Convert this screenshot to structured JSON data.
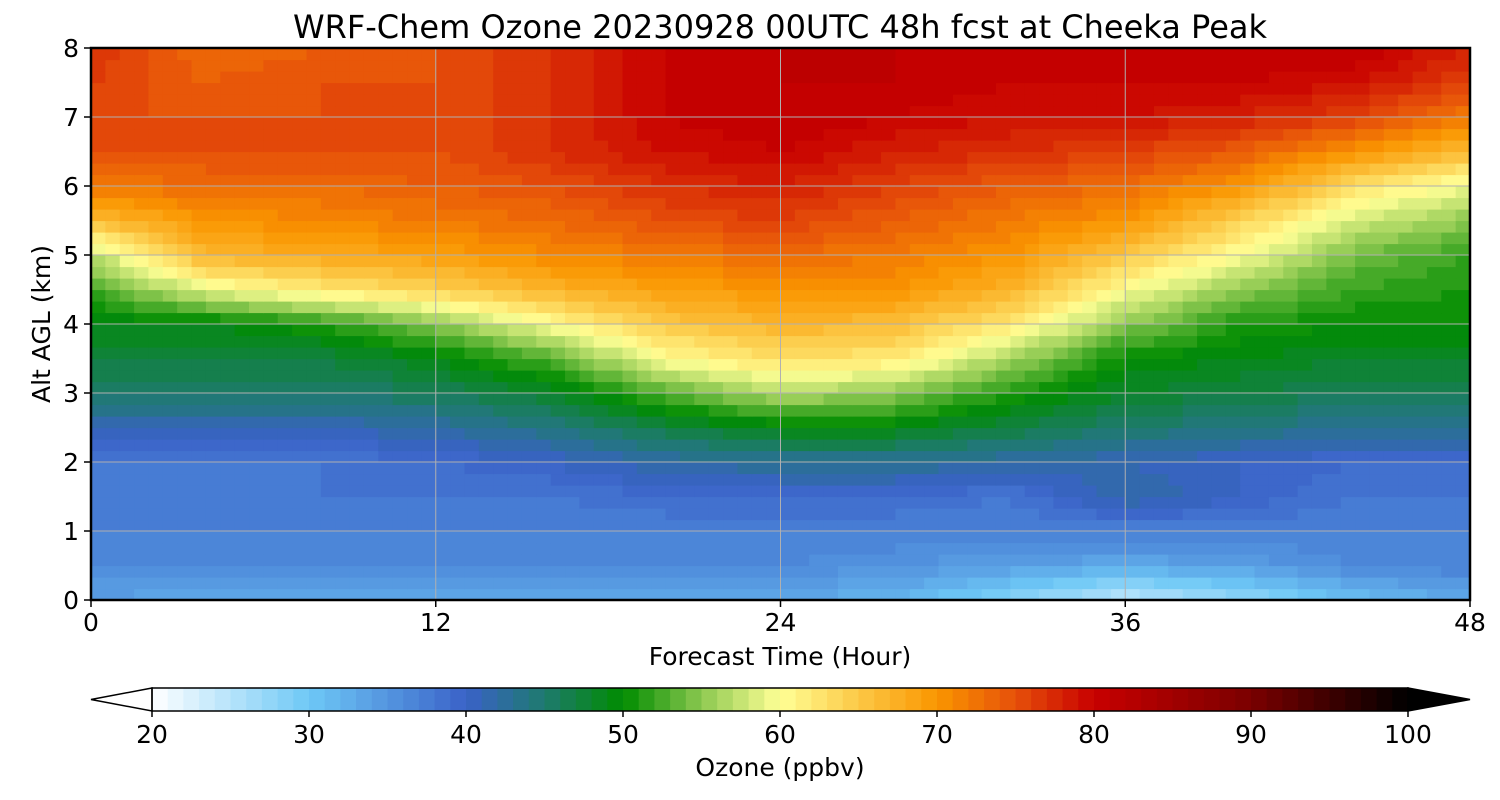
{
  "chart_data": {
    "type": "heatmap",
    "title": "WRF-Chem Ozone  20230928 00UTC 48h fcst at Cheeka Peak",
    "xlabel": "Forecast Time (Hour)",
    "ylabel": "Alt AGL (km)",
    "xlim": [
      0,
      48
    ],
    "ylim": [
      0,
      8
    ],
    "xticks": [
      "0",
      "12",
      "24",
      "36",
      "48"
    ],
    "yticks": [
      "0",
      "1",
      "2",
      "3",
      "4",
      "5",
      "6",
      "7",
      "8"
    ],
    "grid": true,
    "colorbar": {
      "label": "Ozone  (ppbv)",
      "range": [
        20,
        100
      ],
      "ticks": [
        "20",
        "30",
        "40",
        "50",
        "60",
        "70",
        "80",
        "90",
        "100"
      ],
      "extend": "both",
      "stops": [
        {
          "v": 20,
          "c": "#ffffff"
        },
        {
          "v": 30,
          "c": "#6ec8f6"
        },
        {
          "v": 40,
          "c": "#3a62c8"
        },
        {
          "v": 45,
          "c": "#1e7a6e"
        },
        {
          "v": 50,
          "c": "#008c00"
        },
        {
          "v": 55,
          "c": "#8cc850"
        },
        {
          "v": 60,
          "c": "#ffff96"
        },
        {
          "v": 65,
          "c": "#fcc846"
        },
        {
          "v": 70,
          "c": "#fa9600"
        },
        {
          "v": 75,
          "c": "#e6500a"
        },
        {
          "v": 80,
          "c": "#c80000"
        },
        {
          "v": 90,
          "c": "#7a0000"
        },
        {
          "v": 100,
          "c": "#000000"
        }
      ]
    },
    "hours": [
      0,
      4,
      8,
      12,
      16,
      20,
      24,
      28,
      32,
      36,
      40,
      44,
      48
    ],
    "altitudes_km": [
      0,
      0.5,
      1,
      1.5,
      2,
      2.5,
      3,
      3.5,
      4,
      4.5,
      5,
      5.5,
      6,
      6.5,
      7,
      7.5,
      8
    ],
    "values_ppbv": [
      [
        34,
        33,
        33,
        33,
        33,
        33,
        33,
        32,
        28,
        24,
        27,
        31,
        33
      ],
      [
        36,
        36,
        36,
        36,
        36,
        36,
        36,
        35,
        34,
        33,
        34,
        36,
        37
      ],
      [
        37,
        37,
        37,
        37,
        37,
        37,
        37,
        37,
        37,
        37,
        37,
        37,
        37
      ],
      [
        38,
        37,
        38,
        38,
        38,
        39,
        39,
        39,
        38,
        42,
        40,
        38,
        38
      ],
      [
        38,
        38,
        38,
        39,
        40,
        42,
        43,
        43,
        42,
        41,
        40,
        39,
        39
      ],
      [
        41,
        41,
        41,
        42,
        44,
        47,
        49,
        49,
        47,
        45,
        44,
        43,
        43
      ],
      [
        45,
        45,
        45,
        46,
        48,
        53,
        57,
        55,
        51,
        48,
        47,
        46,
        46
      ],
      [
        47,
        47,
        47,
        49,
        53,
        60,
        63,
        62,
        56,
        50,
        49,
        48,
        48
      ],
      [
        49,
        49,
        51,
        55,
        60,
        65,
        67,
        66,
        62,
        55,
        51,
        50,
        50
      ],
      [
        52,
        59,
        62,
        64,
        67,
        69,
        70,
        70,
        67,
        60,
        55,
        52,
        51
      ],
      [
        57,
        67,
        68,
        69,
        71,
        72,
        73,
        72,
        70,
        65,
        60,
        54,
        52
      ],
      [
        66,
        70,
        71,
        72,
        73,
        75,
        76,
        74,
        72,
        70,
        64,
        58,
        55
      ],
      [
        72,
        73,
        73,
        74,
        75,
        77,
        78,
        76,
        74,
        73,
        70,
        63,
        59
      ],
      [
        75,
        75,
        75,
        75,
        77,
        79,
        80,
        78,
        77,
        76,
        74,
        70,
        66
      ],
      [
        75,
        75,
        75,
        75,
        77,
        80,
        81,
        80,
        79,
        79,
        78,
        76,
        72
      ],
      [
        76,
        74,
        75,
        75,
        77,
        80,
        81,
        81,
        80,
        80,
        80,
        79,
        76
      ],
      [
        77,
        73,
        74,
        75,
        77,
        80,
        81,
        81,
        81,
        81,
        81,
        81,
        78
      ]
    ]
  }
}
